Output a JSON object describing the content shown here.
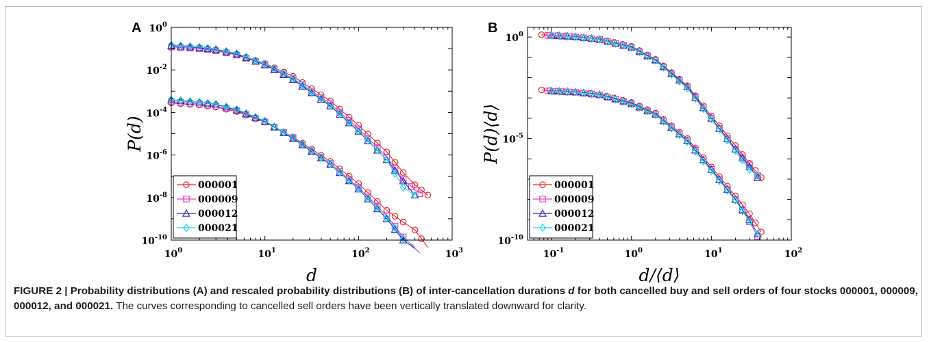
{
  "panels": [
    {
      "label": "A"
    },
    {
      "label": "B"
    }
  ],
  "caption": {
    "lead": "FIGURE 2 | Probability distributions (A) and rescaled probability distributions (B) of inter-cancellation durations ",
    "lead_var": "d",
    "lead_tail": " for both cancelled buy and sell orders of four stocks 000001, 000009, 000012, and 000021.",
    "body": " The curves corresponding to cancelled sell orders have been vertically translated downward for clarity."
  },
  "colors": {
    "s000001": "#e8262a",
    "s000009": "#e63fc8",
    "s000012": "#2b2bb0",
    "s000021": "#1fd6e6"
  },
  "chart_data": [
    {
      "type": "line",
      "panel": "A",
      "xlabel": "d",
      "ylabel": "P(d)",
      "xscale": "log",
      "yscale": "log",
      "xlim": [
        1,
        1000
      ],
      "ylim": [
        1e-10,
        1
      ],
      "xticks": [
        {
          "base": "10",
          "exp": "0"
        },
        {
          "base": "10",
          "exp": "1"
        },
        {
          "base": "10",
          "exp": "2"
        },
        {
          "base": "10",
          "exp": "3"
        }
      ],
      "yticks": [
        {
          "base": "10",
          "exp": "0"
        },
        {
          "base": "10",
          "exp": "-2"
        },
        {
          "base": "10",
          "exp": "-4"
        },
        {
          "base": "10",
          "exp": "-6"
        },
        {
          "base": "10",
          "exp": "-8"
        },
        {
          "base": "10",
          "exp": "-10"
        }
      ],
      "legend_position": "bottom-left",
      "series": [
        {
          "name": "000001",
          "marker": "circle",
          "color": "#e8262a",
          "upper": [
            [
              1,
              0.12
            ],
            [
              2,
              0.1
            ],
            [
              3,
              0.085
            ],
            [
              5,
              0.055
            ],
            [
              10,
              0.02
            ],
            [
              20,
              0.005
            ],
            [
              50,
              0.00035
            ],
            [
              100,
              2.5e-05
            ],
            [
              200,
              1.4e-06
            ],
            [
              300,
              1.5e-07
            ],
            [
              400,
              4e-08
            ],
            [
              550,
              1.3e-08
            ]
          ],
          "lower": [
            [
              1,
              0.00028
            ],
            [
              2,
              0.00022
            ],
            [
              3,
              0.00018
            ],
            [
              5,
              0.00011
            ],
            [
              10,
              3.5e-05
            ],
            [
              20,
              7e-06
            ],
            [
              50,
              5e-07
            ],
            [
              100,
              4.5e-08
            ],
            [
              200,
              2.5e-09
            ],
            [
              300,
              7e-10
            ],
            [
              400,
              3e-10
            ],
            [
              550,
              4.5e-11
            ]
          ]
        },
        {
          "name": "000009",
          "marker": "square",
          "color": "#e63fc8",
          "upper": [
            [
              1,
              0.12
            ],
            [
              2,
              0.1
            ],
            [
              3,
              0.08
            ],
            [
              5,
              0.05
            ],
            [
              10,
              0.018
            ],
            [
              20,
              0.004
            ],
            [
              50,
              0.00026
            ],
            [
              100,
              1.7e-05
            ],
            [
              200,
              8e-07
            ],
            [
              300,
              7e-08
            ],
            [
              450,
              1.5e-08
            ]
          ],
          "lower": [
            [
              1,
              0.00032
            ],
            [
              2,
              0.00025
            ],
            [
              3,
              0.0002
            ],
            [
              5,
              0.00012
            ],
            [
              10,
              3.6e-05
            ],
            [
              20,
              6.5e-06
            ],
            [
              50,
              4e-07
            ],
            [
              100,
              3e-08
            ],
            [
              200,
              1.4e-09
            ],
            [
              300,
              1.4e-10
            ],
            [
              450,
              2.5e-11
            ]
          ]
        },
        {
          "name": "000012",
          "marker": "triangle",
          "color": "#2b2bb0",
          "upper": [
            [
              1,
              0.14
            ],
            [
              2,
              0.11
            ],
            [
              3,
              0.09
            ],
            [
              5,
              0.055
            ],
            [
              10,
              0.017
            ],
            [
              20,
              0.0035
            ],
            [
              50,
              0.0002
            ],
            [
              100,
              1.3e-05
            ],
            [
              200,
              6e-07
            ],
            [
              300,
              6e-08
            ],
            [
              400,
              1.3e-08
            ]
          ],
          "lower": [
            [
              1,
              0.00038
            ],
            [
              2,
              0.0003
            ],
            [
              3,
              0.00024
            ],
            [
              5,
              0.00013
            ],
            [
              10,
              3.8e-05
            ],
            [
              20,
              6e-06
            ],
            [
              50,
              3.6e-07
            ],
            [
              100,
              2.5e-08
            ],
            [
              200,
              1e-09
            ],
            [
              300,
              1e-10
            ],
            [
              400,
              4e-11
            ]
          ]
        },
        {
          "name": "000021",
          "marker": "diamond",
          "color": "#1fd6e6",
          "upper": [
            [
              1,
              0.15
            ],
            [
              2,
              0.12
            ],
            [
              3,
              0.095
            ],
            [
              5,
              0.06
            ],
            [
              10,
              0.019
            ],
            [
              20,
              0.004
            ],
            [
              50,
              0.00022
            ],
            [
              100,
              1.4e-05
            ],
            [
              200,
              6e-07
            ],
            [
              300,
              3e-08
            ],
            [
              400,
              1.3e-08
            ]
          ],
          "lower": [
            [
              1,
              0.0004
            ],
            [
              2,
              0.00031
            ],
            [
              3,
              0.00025
            ],
            [
              5,
              0.00014
            ],
            [
              10,
              4e-05
            ],
            [
              20,
              6.5e-06
            ],
            [
              50,
              3.8e-07
            ],
            [
              100,
              2.6e-08
            ],
            [
              200,
              1.1e-09
            ],
            [
              300,
              1.2e-10
            ],
            [
              400,
              5e-11
            ]
          ]
        }
      ]
    },
    {
      "type": "line",
      "panel": "B",
      "xlabel": "d/⟨d⟩",
      "ylabel": "P(d)⟨d⟩",
      "xscale": "log",
      "yscale": "log",
      "xlim": [
        0.05,
        100
      ],
      "ylim": [
        1e-10,
        3
      ],
      "xticks": [
        {
          "base": "10",
          "exp": "-1"
        },
        {
          "base": "10",
          "exp": "0"
        },
        {
          "base": "10",
          "exp": "1"
        },
        {
          "base": "10",
          "exp": "2"
        }
      ],
      "yticks": [
        {
          "base": "10",
          "exp": "0"
        },
        {
          "base": "10",
          "exp": "-5"
        },
        {
          "base": "10",
          "exp": "-10"
        }
      ],
      "legend_position": "bottom-left",
      "series": [
        {
          "name": "000001",
          "marker": "circle",
          "color": "#e8262a",
          "upper": [
            [
              0.075,
              1.3
            ],
            [
              0.15,
              1.15
            ],
            [
              0.3,
              0.85
            ],
            [
              0.6,
              0.55
            ],
            [
              1,
              0.35
            ],
            [
              2,
              0.08
            ],
            [
              5,
              0.004
            ],
            [
              10,
              0.00013
            ],
            [
              20,
              4.5e-06
            ],
            [
              30,
              6e-07
            ],
            [
              42,
              1.2e-07
            ]
          ],
          "lower": [
            [
              0.075,
              0.0025
            ],
            [
              0.15,
              0.002
            ],
            [
              0.3,
              0.0017
            ],
            [
              0.6,
              0.001
            ],
            [
              1,
              0.0006
            ],
            [
              2,
              0.00018
            ],
            [
              5,
              1e-05
            ],
            [
              10,
              4e-07
            ],
            [
              20,
              1.5e-08
            ],
            [
              30,
              2e-09
            ],
            [
              42,
              2.5e-10
            ]
          ]
        },
        {
          "name": "000009",
          "marker": "square",
          "color": "#e63fc8",
          "upper": [
            [
              0.09,
              1.2
            ],
            [
              0.2,
              1.0
            ],
            [
              0.4,
              0.75
            ],
            [
              1,
              0.3
            ],
            [
              2,
              0.07
            ],
            [
              5,
              0.0035
            ],
            [
              10,
              0.0001
            ],
            [
              20,
              3e-06
            ],
            [
              30,
              5e-07
            ],
            [
              38,
              1.5e-07
            ]
          ],
          "lower": [
            [
              0.09,
              0.0022
            ],
            [
              0.2,
              0.0019
            ],
            [
              0.4,
              0.0014
            ],
            [
              1,
              0.0005
            ],
            [
              2,
              0.00015
            ],
            [
              5,
              8e-06
            ],
            [
              10,
              3e-07
            ],
            [
              20,
              1e-08
            ],
            [
              30,
              8e-10
            ],
            [
              38,
              1.5e-10
            ]
          ]
        },
        {
          "name": "000012",
          "marker": "triangle",
          "color": "#2b2bb0",
          "upper": [
            [
              0.1,
              1.25
            ],
            [
              0.2,
              1.05
            ],
            [
              0.4,
              0.78
            ],
            [
              1,
              0.32
            ],
            [
              2,
              0.075
            ],
            [
              5,
              0.0035
            ],
            [
              10,
              0.0001
            ],
            [
              20,
              3e-06
            ],
            [
              30,
              4e-07
            ],
            [
              38,
              1.2e-07
            ]
          ],
          "lower": [
            [
              0.1,
              0.0023
            ],
            [
              0.2,
              0.002
            ],
            [
              0.4,
              0.0015
            ],
            [
              1,
              0.00055
            ],
            [
              2,
              0.00016
            ],
            [
              5,
              8e-06
            ],
            [
              10,
              3e-07
            ],
            [
              20,
              1e-08
            ],
            [
              30,
              1e-09
            ],
            [
              38,
              2e-10
            ]
          ]
        },
        {
          "name": "000021",
          "marker": "diamond",
          "color": "#1fd6e6",
          "upper": [
            [
              0.1,
              1.2
            ],
            [
              0.2,
              1.0
            ],
            [
              0.4,
              0.75
            ],
            [
              1,
              0.3
            ],
            [
              2,
              0.07
            ],
            [
              5,
              0.003
            ],
            [
              10,
              9e-05
            ],
            [
              20,
              2.5e-06
            ],
            [
              30,
              3e-07
            ],
            [
              38,
              1.5e-07
            ]
          ],
          "lower": [
            [
              0.1,
              0.0022
            ],
            [
              0.2,
              0.0019
            ],
            [
              0.4,
              0.0014
            ],
            [
              1,
              0.0005
            ],
            [
              2,
              0.00015
            ],
            [
              5,
              7e-06
            ],
            [
              10,
              2.5e-07
            ],
            [
              20,
              9e-09
            ],
            [
              30,
              8e-10
            ],
            [
              38,
              2e-10
            ]
          ]
        }
      ]
    }
  ]
}
